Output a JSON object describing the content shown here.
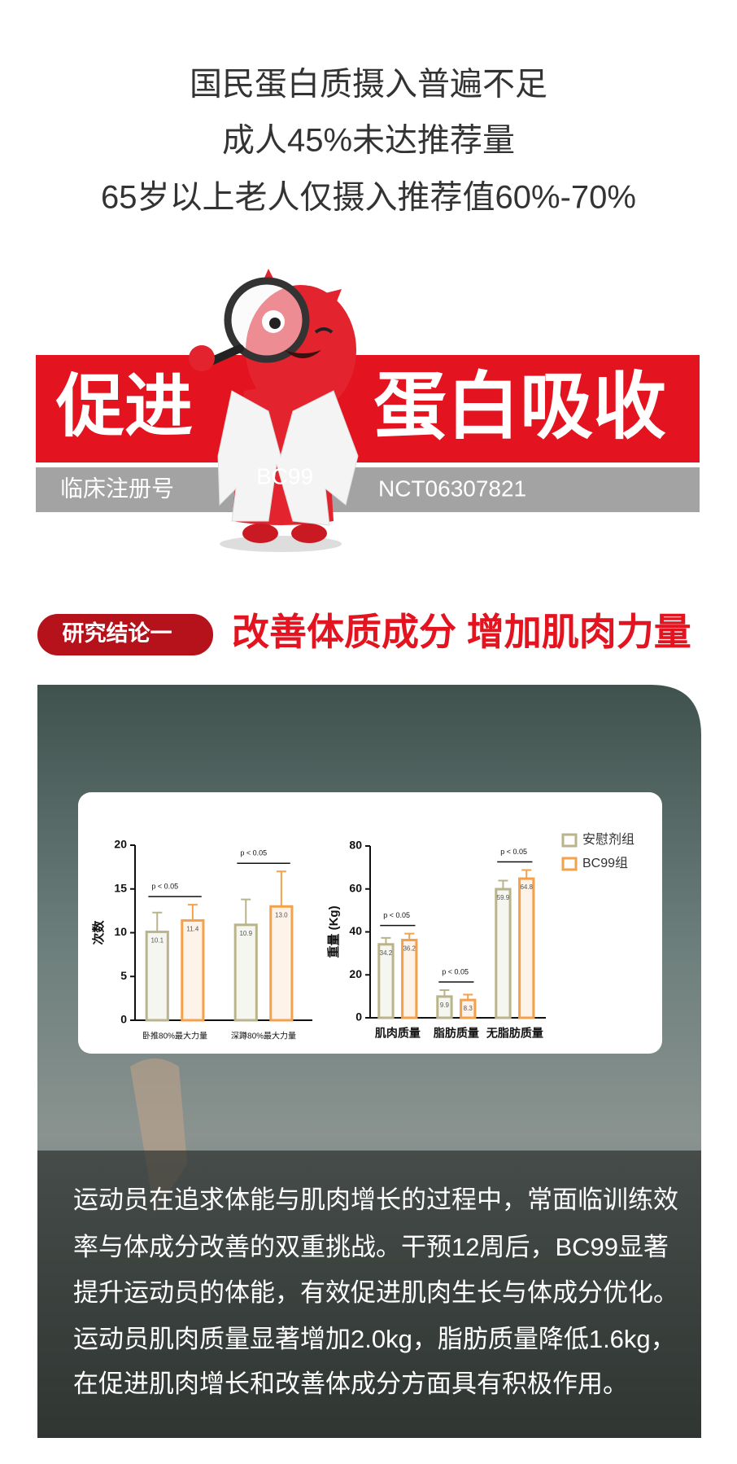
{
  "header": {
    "lines": [
      "国民蛋白质摄入普遍不足",
      "成人45%未达推荐量",
      "65岁以上老人仅摄入推荐值60%-70%"
    ]
  },
  "banner": {
    "left": "促进",
    "right": "蛋白吸收",
    "registry_label": "临床注册号",
    "registry_number": "NCT06307821",
    "mascot_label": "BC99"
  },
  "section": {
    "tag": "研究结论一",
    "headline": "改善体质成分 增加肌肉力量"
  },
  "chart_data": [
    {
      "type": "bar",
      "ylabel": "次数",
      "categories": [
        "卧推80%最大力量",
        "深蹲80%最大力量"
      ],
      "series": [
        {
          "color": "#b9b48c",
          "values": [
            10.1,
            10.9
          ],
          "errors": [
            2.2,
            2.9
          ]
        },
        {
          "color": "#f5a04a",
          "values": [
            11.4,
            13.0
          ],
          "value_labels": [
            "11.4",
            "13.0"
          ],
          "errors": [
            1.8,
            4.0
          ]
        }
      ],
      "annotations": [
        "p < 0.05",
        "p < 0.05"
      ],
      "ylim": [
        0,
        20
      ],
      "yticks": [
        0,
        5,
        10,
        15,
        20
      ]
    },
    {
      "type": "bar",
      "ylabel": "重量 (Kg)",
      "categories": [
        "肌肉质量",
        "脂肪质量",
        "无脂肪质量"
      ],
      "series": [
        {
          "name": "安慰剂组",
          "color": "#b9b48c",
          "values": [
            34.2,
            9.9,
            59.9
          ],
          "errors": [
            3,
            3,
            4
          ]
        },
        {
          "name": "BC99组",
          "color": "#f5a04a",
          "values": [
            36.2,
            8.3,
            64.8
          ],
          "errors": [
            3,
            2.5,
            4
          ]
        }
      ],
      "annotations": [
        "p < 0.05",
        "p < 0.05",
        "p < 0.05"
      ],
      "ylim": [
        0,
        80
      ],
      "yticks": [
        0,
        20,
        40,
        60,
        80
      ]
    }
  ],
  "body": {
    "lines": [
      "运动员在追求体能与肌肉增长的过程中，常面临训练效",
      "率与体成分改善的双重挑战。干预12周后，BC99显著",
      "提升运动员的体能，有效促进肌肉生长与体成分优化。",
      "运动员肌肉质量显著增加2.0kg，脂肪质量降低1.6kg，",
      "在促进肌肉增长和改善体成分方面具有积极作用。"
    ]
  }
}
